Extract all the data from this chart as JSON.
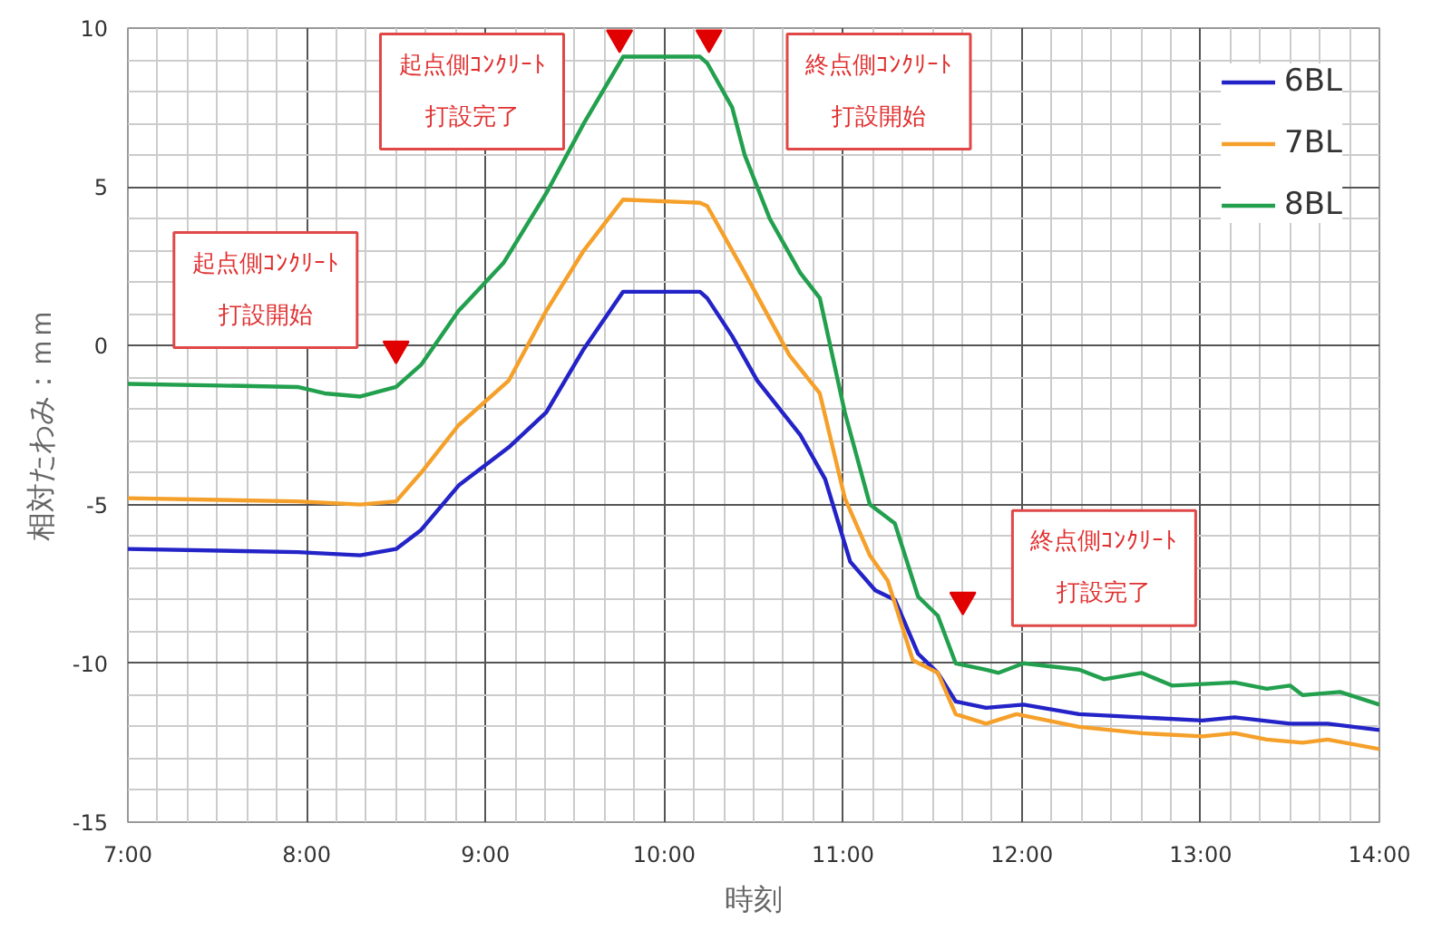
{
  "chart_data": {
    "type": "line",
    "xlabel": "時刻",
    "ylabel": "相対たわみ：ｍｍ",
    "xlim": [
      7,
      14
    ],
    "ylim": [
      -15,
      10
    ],
    "xticks": [
      {
        "value": 7,
        "label": "7:00"
      },
      {
        "value": 8,
        "label": "8:00"
      },
      {
        "value": 9,
        "label": "9:00"
      },
      {
        "value": 10,
        "label": "10:00"
      },
      {
        "value": 11,
        "label": "11:00"
      },
      {
        "value": 12,
        "label": "12:00"
      },
      {
        "value": 13,
        "label": "13:00"
      },
      {
        "value": 14,
        "label": "14:00"
      }
    ],
    "yticks": [
      -15,
      -10,
      -5,
      0,
      5,
      10
    ],
    "grid": true,
    "legend": "top right",
    "marker": "none",
    "line_style": "solid",
    "series": [
      {
        "name": "6BL",
        "color": "#2323c8",
        "x": [
          7.0,
          7.95,
          8.3,
          8.5,
          8.64,
          8.85,
          9.13,
          9.34,
          9.55,
          9.77,
          10.2,
          10.24,
          10.38,
          10.52,
          10.76,
          10.9,
          11.04,
          11.18,
          11.29,
          11.42,
          11.53,
          11.63,
          11.8,
          12.01,
          12.32,
          13.01,
          13.19,
          13.5,
          13.71,
          14.0
        ],
        "values": [
          -6.4,
          -6.5,
          -6.6,
          -6.4,
          -5.8,
          -4.4,
          -3.2,
          -2.1,
          -0.1,
          1.7,
          1.7,
          1.5,
          0.3,
          -1.1,
          -2.8,
          -4.2,
          -6.8,
          -7.7,
          -8.0,
          -9.7,
          -10.3,
          -11.2,
          -11.4,
          -11.3,
          -11.6,
          -11.8,
          -11.7,
          -11.9,
          -11.9,
          -12.1
        ]
      },
      {
        "name": "7BL",
        "color": "#f5a02a",
        "x": [
          7.0,
          7.95,
          8.3,
          8.5,
          8.64,
          8.85,
          9.13,
          9.34,
          9.55,
          9.77,
          10.2,
          10.24,
          10.45,
          10.7,
          10.87,
          11.01,
          11.15,
          11.25,
          11.39,
          11.53,
          11.63,
          11.8,
          11.97,
          12.32,
          12.67,
          13.01,
          13.19,
          13.37,
          13.57,
          13.71,
          14.0
        ],
        "values": [
          -4.8,
          -4.9,
          -5.0,
          -4.9,
          -4.0,
          -2.5,
          -1.1,
          1.1,
          3.0,
          4.6,
          4.5,
          4.4,
          2.3,
          -0.3,
          -1.5,
          -4.8,
          -6.6,
          -7.4,
          -9.9,
          -10.3,
          -11.6,
          -11.9,
          -11.6,
          -12.0,
          -12.2,
          -12.3,
          -12.2,
          -12.4,
          -12.5,
          -12.4,
          -12.7
        ]
      },
      {
        "type": "scatter",
        "marker": "triangle",
        "color": "#e00000",
        "x": [
          8.5,
          9.75,
          10.25,
          11.67
        ],
        "values": [
          -0.1,
          9.7,
          9.7,
          -8.0
        ]
      },
      {
        "name": "8BL",
        "color": "#22a04e",
        "x": [
          7.0,
          7.95,
          8.1,
          8.3,
          8.5,
          8.64,
          8.85,
          9.1,
          9.34,
          9.55,
          9.77,
          10.2,
          10.24,
          10.38,
          10.45,
          10.59,
          10.76,
          10.87,
          11.01,
          11.15,
          11.29,
          11.42,
          11.53,
          11.63,
          11.8,
          11.87,
          12.01,
          12.32,
          12.46,
          12.67,
          12.84,
          13.19,
          13.37,
          13.5,
          13.57,
          13.78,
          14.0
        ],
        "values": [
          -1.2,
          -1.3,
          -1.5,
          -1.6,
          -1.3,
          -0.6,
          1.1,
          2.6,
          4.8,
          7.0,
          9.1,
          9.1,
          8.9,
          7.5,
          6.0,
          4.0,
          2.3,
          1.5,
          -2.1,
          -5.0,
          -5.6,
          -7.9,
          -8.5,
          -10.0,
          -10.2,
          -10.3,
          -10.0,
          -10.2,
          -10.5,
          -10.3,
          -10.7,
          -10.6,
          -10.8,
          -10.7,
          -11.0,
          -10.9,
          -11.3
        ]
      }
    ],
    "annotations": [
      "起点側ｺﾝｸﾘｰﾄ打設開始",
      "起点側ｺﾝｸﾘｰﾄ打設完了",
      "終点側ｺﾝｸﾘｰﾄ打設開始",
      "終点側ｺﾝｸﾘｰﾄ打設完了"
    ]
  }
}
